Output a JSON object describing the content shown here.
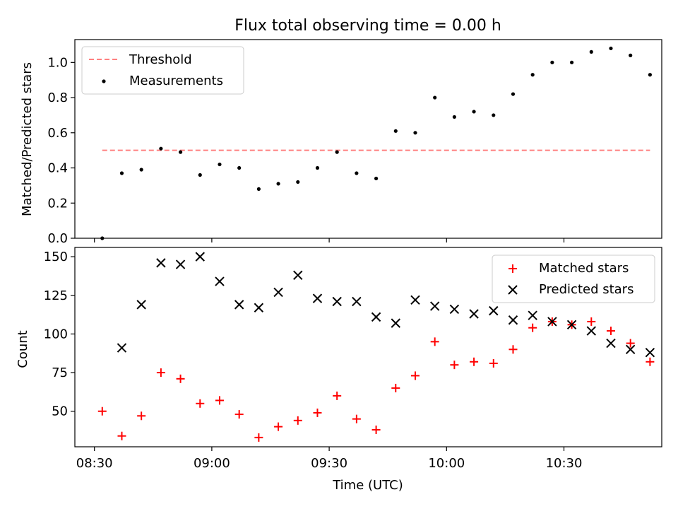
{
  "chart_data": [
    {
      "type": "scatter",
      "title": "Flux total observing time = 0.00 h",
      "ylabel": "Matched/Predicted stars",
      "ylim": [
        0,
        1.13
      ],
      "yticks": [
        0.0,
        0.2,
        0.4,
        0.6,
        0.8,
        1.0
      ],
      "ytick_labels": [
        "0.0",
        "0.2",
        "0.4",
        "0.6",
        "0.8",
        "1.0"
      ],
      "legend_position": "top-left",
      "threshold": {
        "name": "Threshold",
        "value": 0.5,
        "x_start": "08:32",
        "x_end": "10:52",
        "color": "#ff8080",
        "style": "dashed"
      },
      "series": [
        {
          "name": "Measurements",
          "marker": "dot",
          "color": "#000000",
          "x": [
            "08:32",
            "08:37",
            "08:42",
            "08:47",
            "08:52",
            "08:57",
            "09:02",
            "09:07",
            "09:12",
            "09:17",
            "09:22",
            "09:27",
            "09:32",
            "09:37",
            "09:42",
            "09:47",
            "09:52",
            "09:57",
            "10:02",
            "10:07",
            "10:12",
            "10:17",
            "10:22",
            "10:27",
            "10:32",
            "10:37",
            "10:42",
            "10:47",
            "10:52"
          ],
          "values": [
            0.0,
            0.37,
            0.39,
            0.51,
            0.49,
            0.36,
            0.42,
            0.4,
            0.28,
            0.31,
            0.32,
            0.4,
            0.49,
            0.37,
            0.34,
            0.61,
            0.6,
            0.8,
            0.69,
            0.72,
            0.7,
            0.82,
            0.93,
            1.0,
            1.0,
            1.06,
            1.08,
            1.04,
            0.93
          ]
        }
      ]
    },
    {
      "type": "scatter",
      "xlabel": "Time (UTC)",
      "ylabel": "Count",
      "xlim": [
        "08:25",
        "10:55"
      ],
      "ylim": [
        27,
        156
      ],
      "xticks": [
        "08:30",
        "09:00",
        "09:30",
        "10:00",
        "10:30"
      ],
      "yticks": [
        50,
        75,
        100,
        125,
        150
      ],
      "ytick_labels": [
        "50",
        "75",
        "100",
        "125",
        "150"
      ],
      "legend_position": "top-right",
      "series": [
        {
          "name": "Matched stars",
          "marker": "plus",
          "color": "#ff0000",
          "x": [
            "08:32",
            "08:37",
            "08:42",
            "08:47",
            "08:52",
            "08:57",
            "09:02",
            "09:07",
            "09:12",
            "09:17",
            "09:22",
            "09:27",
            "09:32",
            "09:37",
            "09:42",
            "09:47",
            "09:52",
            "09:57",
            "10:02",
            "10:07",
            "10:12",
            "10:17",
            "10:22",
            "10:27",
            "10:32",
            "10:37",
            "10:42",
            "10:47",
            "10:52"
          ],
          "values": [
            50,
            34,
            47,
            75,
            71,
            55,
            57,
            48,
            33,
            40,
            44,
            49,
            60,
            45,
            38,
            65,
            73,
            95,
            80,
            82,
            81,
            90,
            104,
            108,
            106,
            108,
            102,
            94,
            82
          ]
        },
        {
          "name": "Predicted stars",
          "marker": "x",
          "color": "#000000",
          "x": [
            "08:37",
            "08:42",
            "08:47",
            "08:52",
            "08:57",
            "09:02",
            "09:07",
            "09:12",
            "09:17",
            "09:22",
            "09:27",
            "09:32",
            "09:37",
            "09:42",
            "09:47",
            "09:52",
            "09:57",
            "10:02",
            "10:07",
            "10:12",
            "10:17",
            "10:22",
            "10:27",
            "10:32",
            "10:37",
            "10:42",
            "10:47",
            "10:52"
          ],
          "values": [
            91,
            119,
            146,
            145,
            150,
            134,
            119,
            117,
            127,
            138,
            123,
            121,
            121,
            111,
            107,
            122,
            118,
            116,
            113,
            115,
            109,
            112,
            108,
            106,
            102,
            94,
            90,
            88
          ]
        }
      ]
    }
  ]
}
